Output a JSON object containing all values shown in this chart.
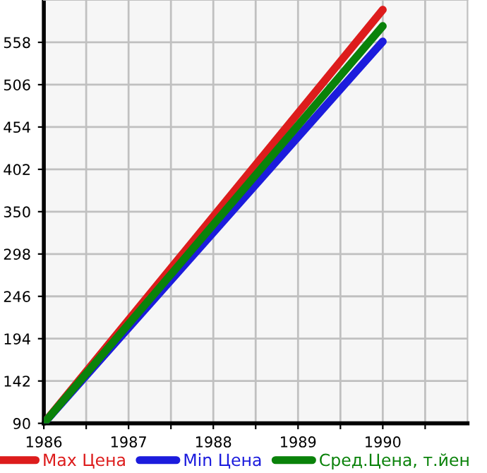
{
  "chart_data": {
    "type": "line",
    "x": [
      1986,
      1990
    ],
    "series": [
      {
        "name": "Max Цена",
        "color": "#dd1c1c",
        "values": [
          90,
          598
        ]
      },
      {
        "name": "Min Цена",
        "color": "#1c1cdd",
        "values": [
          90,
          559
        ]
      },
      {
        "name": "Сред.Цена, т.йен",
        "color": "#0a820a",
        "values": [
          90,
          578
        ]
      }
    ],
    "xlim": [
      1986,
      1991
    ],
    "ylim": [
      90,
      610
    ],
    "xticks": [
      1986,
      {
        "value": 1986.5,
        "label": null
      },
      1987,
      {
        "value": 1987.5,
        "label": null
      },
      1988,
      {
        "value": 1988.5,
        "label": null
      },
      1989,
      {
        "value": 1989.5,
        "label": null
      },
      1990,
      {
        "value": 1990.5,
        "label": null
      }
    ],
    "yticks": [
      90,
      142,
      194,
      246,
      298,
      350,
      402,
      454,
      506,
      558
    ],
    "grid": true,
    "legend": "bottom",
    "marker": "none",
    "line_style": "solid"
  }
}
